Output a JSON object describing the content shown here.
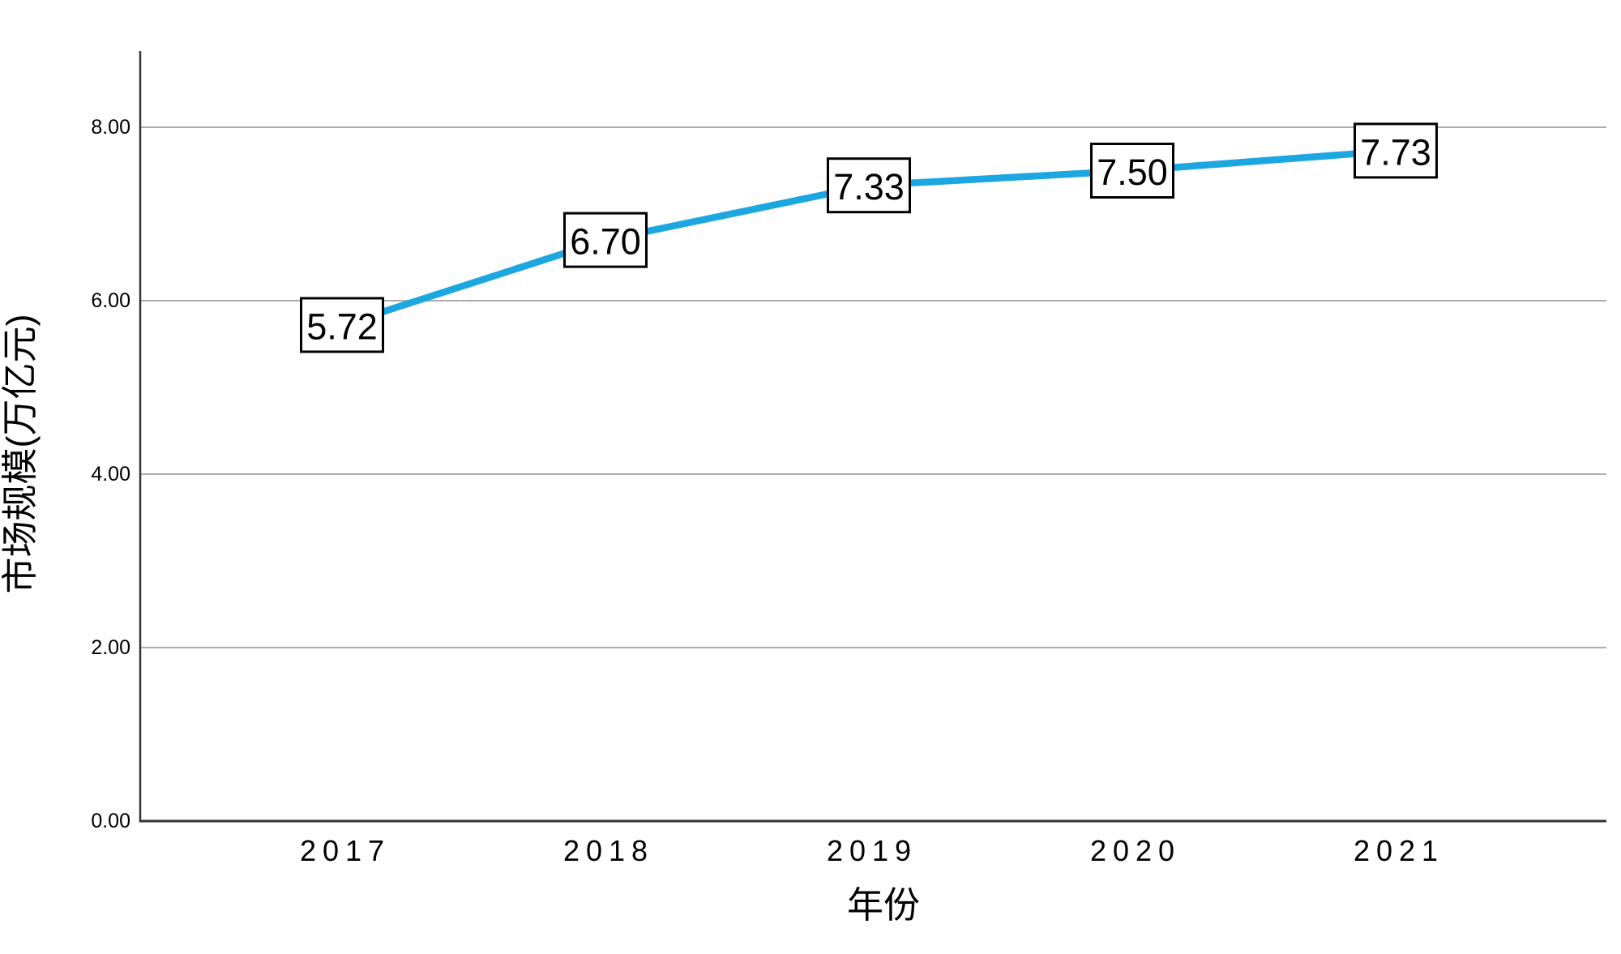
{
  "chart_data": {
    "type": "line",
    "title": "",
    "xlabel": "年份",
    "ylabel": "市场规模(万亿元)",
    "categories": [
      "2017",
      "2018",
      "2019",
      "2020",
      "2021"
    ],
    "series": [
      {
        "name": "市场规模",
        "values": [
          5.72,
          6.7,
          7.33,
          7.5,
          7.73
        ]
      }
    ],
    "point_labels": [
      "5.72",
      "6.70",
      "7.33",
      "7.50",
      "7.73"
    ],
    "y_ticks": [
      {
        "value": 0,
        "label": "0.00"
      },
      {
        "value": 2,
        "label": "2.00"
      },
      {
        "value": 4,
        "label": "4.00"
      },
      {
        "value": 6,
        "label": "6.00"
      },
      {
        "value": 8,
        "label": "8.00"
      }
    ],
    "ylim": [
      0,
      8.9
    ],
    "grid": "horizontal",
    "legend": "none",
    "point_label_style": "boxed",
    "colors": {
      "line": "#1CA7E1",
      "grid": "#ACACAC",
      "axis": "#333333",
      "text": "#000000",
      "label_box_bg": "#FFFFFF",
      "label_box_border": "#000000"
    }
  }
}
